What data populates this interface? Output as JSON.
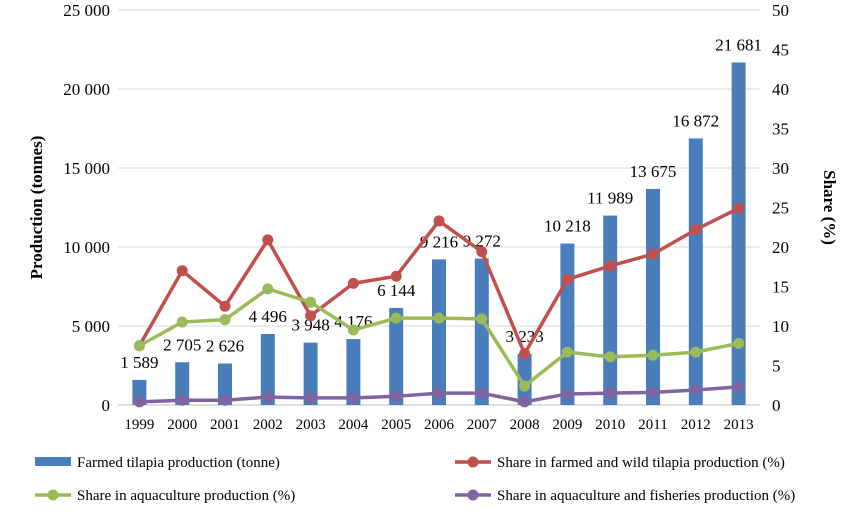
{
  "chart_data": {
    "type": "bar+line",
    "categories": [
      "1999",
      "2000",
      "2001",
      "2002",
      "2003",
      "2004",
      "2005",
      "2006",
      "2007",
      "2008",
      "2009",
      "2010",
      "2011",
      "2012",
      "2013"
    ],
    "ylabel": "Production (tonnes)",
    "y2label": "Share (%)",
    "ylim": [
      0,
      25000
    ],
    "y2lim": [
      0,
      50
    ],
    "yticks": [
      "0",
      "5 000",
      "10 000",
      "15 000",
      "20 000",
      "25 000"
    ],
    "y2ticks": [
      "0",
      "5",
      "10",
      "15",
      "20",
      "25",
      "30",
      "35",
      "40",
      "45",
      "50"
    ],
    "grid": true,
    "legend": "bottom",
    "series": [
      {
        "name": "Farmed tilapia production (tonne)",
        "type": "bar",
        "axis": "left",
        "color": "#4a7ebb",
        "values": [
          1589,
          2705,
          2626,
          4496,
          3948,
          4176,
          6144,
          9216,
          9272,
          3233,
          10218,
          11989,
          13675,
          16872,
          21681
        ],
        "labels": [
          "1 589",
          "2 705",
          "2 626",
          "4 496",
          "3 948",
          "4 176",
          "6 144",
          "9 216",
          "9 272",
          "3 233",
          "10 218",
          "11 989",
          "13 675",
          "16 872",
          "21 681"
        ]
      },
      {
        "name": "Share in farmed and wild tilapia production (%)",
        "type": "line",
        "axis": "right",
        "color": "#c0504d",
        "values": [
          7.5,
          17.0,
          12.5,
          20.9,
          11.3,
          15.4,
          16.3,
          23.3,
          19.4,
          6.5,
          15.9,
          17.6,
          19.1,
          22.2,
          24.9
        ]
      },
      {
        "name": "Share in aquaculture production (%)",
        "type": "line",
        "axis": "right",
        "color": "#9bbb59",
        "values": [
          7.5,
          10.5,
          10.8,
          14.7,
          13.0,
          9.5,
          11.0,
          11.0,
          10.9,
          2.4,
          6.7,
          6.1,
          6.3,
          6.7,
          7.8
        ]
      },
      {
        "name": "Share in aquaculture and fisheries production (%)",
        "type": "line",
        "axis": "right",
        "color": "#8064a2",
        "values": [
          0.4,
          0.6,
          0.6,
          1.0,
          0.9,
          0.9,
          1.1,
          1.5,
          1.5,
          0.4,
          1.4,
          1.5,
          1.6,
          1.9,
          2.3
        ]
      }
    ]
  }
}
